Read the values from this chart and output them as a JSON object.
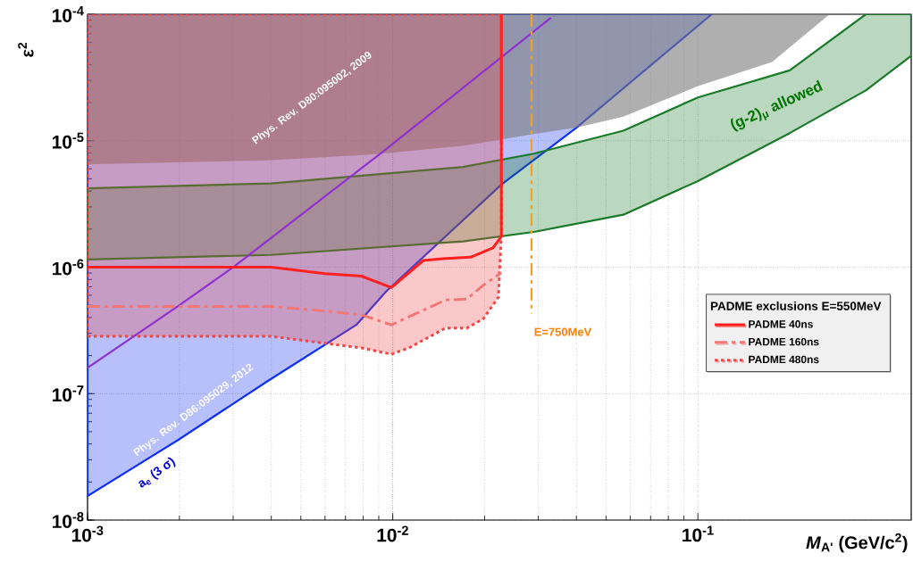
{
  "chart_data": {
    "type": "line",
    "xlabel": "*M*$_{A'}$ (GeV/c$^{2}$)",
    "ylabel": "ε$^{2}$",
    "legend_title": "PADME exclusions E=550MeV",
    "log": "xy",
    "grid": true,
    "legend": "right",
    "xlim": [
      0.001,
      0.5
    ],
    "ylim": [
      1e-08,
      0.0001
    ],
    "xticks": [
      {
        "value": 0.001,
        "label": "10$^{-3}$"
      },
      {
        "value": 0.01,
        "label": "10$^{-2}$"
      },
      {
        "value": 0.1,
        "label": "10$^{-1}$"
      }
    ],
    "yticks": [
      {
        "value": 1e-08,
        "label": "10$^{-8}$"
      },
      {
        "value": 1e-07,
        "label": "10$^{-7}$"
      },
      {
        "value": 1e-06,
        "label": "10$^{-6}$"
      },
      {
        "value": 1e-05,
        "label": "10$^{-5}$"
      },
      {
        "value": 0.0001,
        "label": "10$^{-4}$"
      }
    ],
    "series": [
      {
        "color": "#1030f0",
        "line_style": "solid",
        "x": [
          0.001,
          0.00198,
          0.0039,
          0.0076,
          0.0095,
          0.0227,
          0.04,
          0.111
        ],
        "values": [
          null,
          null,
          null,
          null,
          null,
          null,
          null,
          null
        ],
        "lower": [
          1.55e-08,
          4.3e-08,
          1.26e-07,
          3.5e-07,
          6.4e-07,
          4.5e-06,
          1.27e-05,
          0.0001
        ],
        "upper": [
          0.0001,
          0.0001,
          0.0001,
          0.0001,
          0.0001,
          0.0001,
          0.0001,
          0.0001
        ]
      },
      {
        "color": "#7a7a7a",
        "x": [
          0.001,
          0.0039,
          0.0087,
          0.017,
          0.029,
          0.04,
          0.057,
          0.1,
          0.175,
          0.27
        ],
        "values": [
          null,
          null,
          null,
          null,
          null,
          null,
          null,
          null,
          null,
          null
        ],
        "lower": [
          6.5e-06,
          7e-06,
          7.8e-06,
          9.1e-06,
          1.13e-05,
          1.27e-05,
          1.55e-05,
          2.7e-05,
          4.2e-05,
          0.0001
        ],
        "upper": [
          0.0001,
          0.0001,
          0.0001,
          0.0001,
          0.0001,
          0.0001,
          0.0001,
          0.0001,
          0.0001,
          0.0001
        ]
      },
      {
        "color": "#1a7a2a",
        "line_style": "solid",
        "x": [
          0.001,
          0.004,
          0.017,
          0.029,
          0.057,
          0.1,
          0.2,
          0.355,
          0.5
        ],
        "values": [
          null,
          null,
          null,
          null,
          null,
          null,
          null,
          null,
          null
        ],
        "lower": [
          1.15e-06,
          1.25e-06,
          1.6e-06,
          1.9e-06,
          2.6e-06,
          4.8e-06,
          1.15e-05,
          2.5e-05,
          4.7e-05
        ],
        "upper": [
          4.2e-06,
          4.6e-06,
          6.2e-06,
          7.9e-06,
          1.2e-05,
          2.2e-05,
          3.6e-05,
          0.0001,
          0.0001
        ]
      },
      {
        "color": "#9030d0",
        "line_style": "solid",
        "x": [
          0.001,
          0.002,
          0.003,
          0.0093,
          0.033
        ],
        "values": [
          1.6e-07,
          5e-07,
          1e-06,
          8.2e-06,
          9.4e-05
        ]
      },
      {
        "color": "#f5a020",
        "line_style": "dashed",
        "x": [
          0.0285,
          0.0285
        ],
        "values": [
          0.0001,
          4.3e-07
        ]
      },
      {
        "name": "PADME 40ns",
        "color": "#ff2020",
        "line_style": "solid",
        "x": [
          0.001,
          0.004,
          0.006,
          0.0079,
          0.0099,
          0.0126,
          0.0149,
          0.018,
          0.0213,
          0.0227,
          0.0227
        ],
        "values": [
          1e-06,
          1e-06,
          8.9e-07,
          8.5e-07,
          6.9e-07,
          1.13e-06,
          1.17e-06,
          1.2e-06,
          1.42e-06,
          1.75e-06,
          0.0001
        ]
      },
      {
        "name": "PADME 160ns",
        "color": "#f27878",
        "line_style": "dashed",
        "x": [
          0.001,
          0.004,
          0.006,
          0.0079,
          0.0099,
          0.0149,
          0.0175,
          0.0198,
          0.0227
        ],
        "values": [
          4.9e-07,
          4.9e-07,
          4.5e-07,
          4.2e-07,
          3.5e-07,
          5.5e-07,
          5.6e-07,
          7.2e-07,
          9e-07
        ]
      },
      {
        "name": "PADME 480ns",
        "color": "#f04848",
        "line_style": "dotted",
        "x": [
          0.001,
          0.004,
          0.006,
          0.0079,
          0.0099,
          0.0113,
          0.0149,
          0.0175,
          0.0198,
          0.0222,
          0.0227
        ],
        "values": [
          null,
          null,
          null,
          null,
          null,
          null,
          null,
          null,
          null,
          null,
          null
        ],
        "lower": [
          2.84e-07,
          2.84e-07,
          2.5e-07,
          2.3e-07,
          2.05e-07,
          2.3e-07,
          3.3e-07,
          3.3e-07,
          3.9e-07,
          5.8e-07,
          1.8e-06
        ],
        "upper": [
          0.0001,
          0.0001,
          0.0001,
          0.0001,
          0.0001,
          0.0001,
          0.0001,
          0.0001,
          0.0001,
          0.0001,
          0.0001
        ]
      }
    ],
    "annotations": [
      "Phys. Rev. D80:095002, 2009",
      "Phys. Rev. D86:095029, 2012",
      "a$_{e}$ (3 σ)",
      "(g-2)$_{μ}$ allowed",
      "E=750MeV"
    ]
  }
}
